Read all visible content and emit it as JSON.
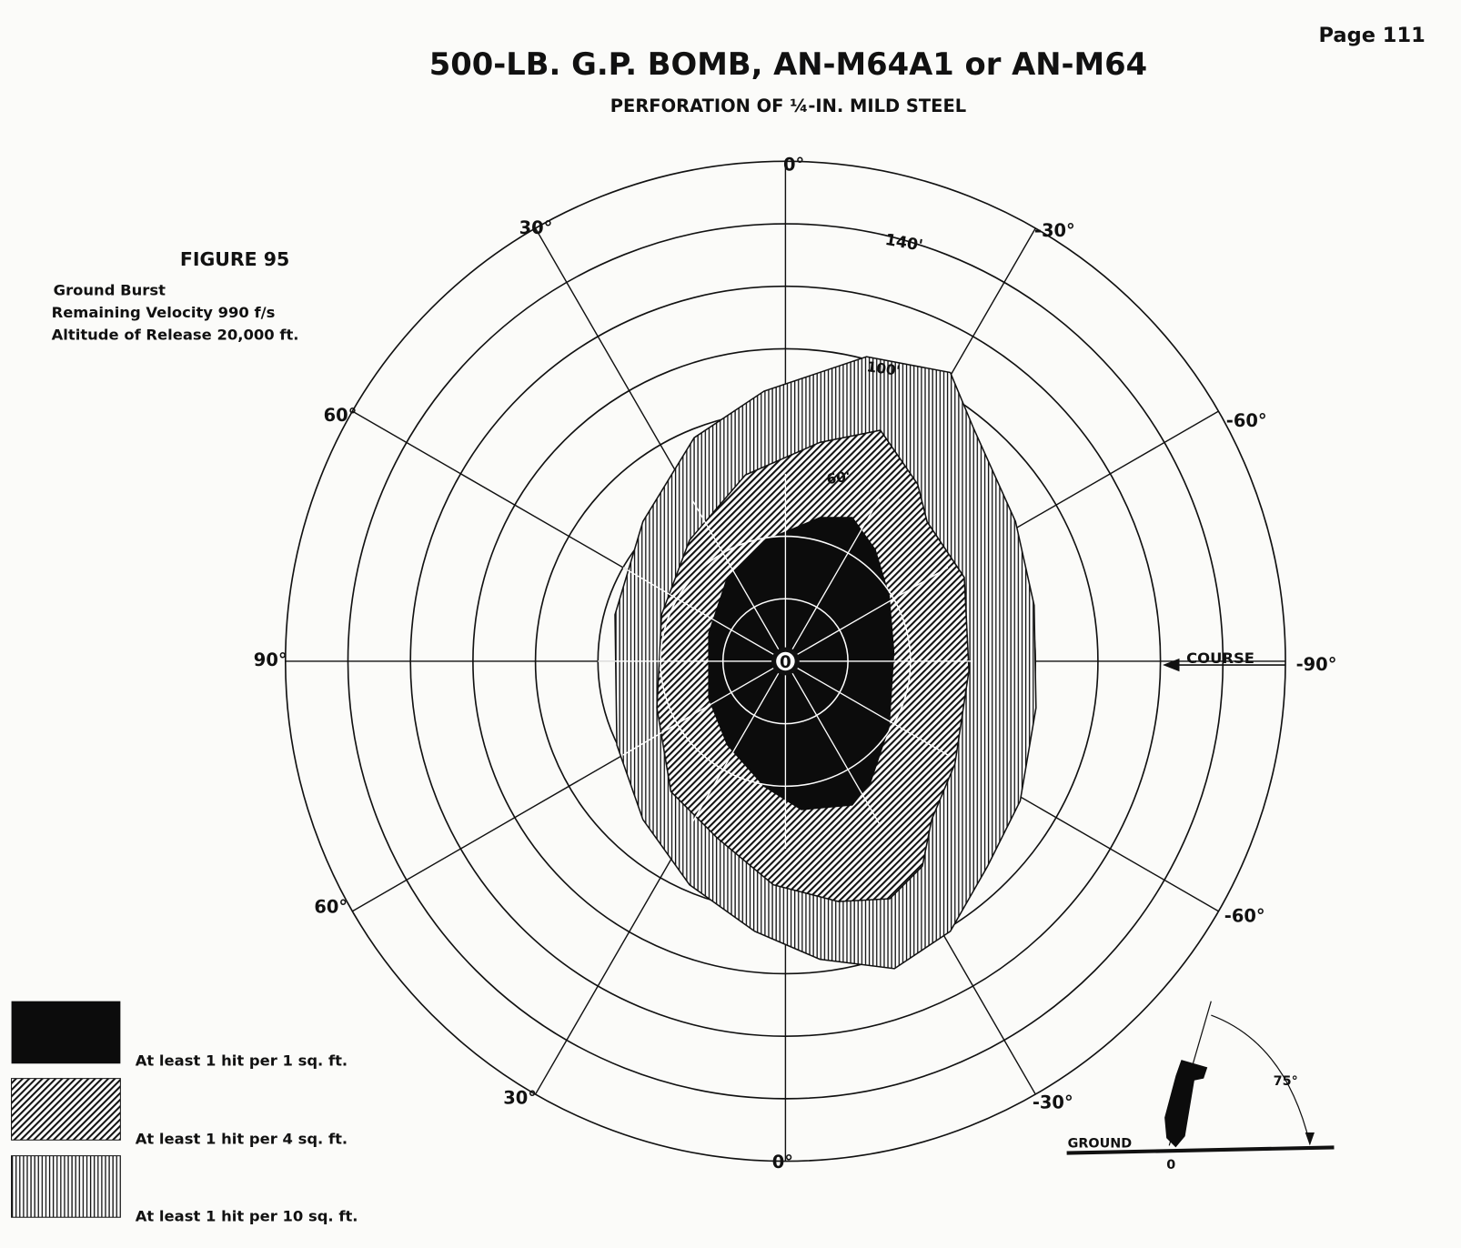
{
  "header": {
    "page": "Page 111",
    "title": "500-LB. G.P. BOMB, AN-M64A1 or AN-M64",
    "subtitle": "PERFORATION OF ¼-IN. MILD STEEL"
  },
  "figure": {
    "label": "FIGURE 95",
    "notes": [
      "Ground Burst",
      "Remaining Velocity 990 f/s",
      "Altitude of Release 20,000 ft."
    ]
  },
  "polar": {
    "angle_labels": [
      "0°",
      "30°",
      "-30°",
      "60°",
      "-60°",
      "90°",
      "-90°",
      "60°",
      "-60°",
      "30°",
      "-30°",
      "0°"
    ],
    "range_labels": [
      "140'",
      "100'",
      "60'"
    ],
    "center": "0",
    "course": "COURSE"
  },
  "legend": [
    "At least 1 hit per 1 sq. ft.",
    "At least 1 hit per 4 sq. ft.",
    "At least 1 hit per 10 sq. ft."
  ],
  "inset": {
    "ground": "GROUND",
    "origin": "0",
    "angle": "75°"
  }
}
